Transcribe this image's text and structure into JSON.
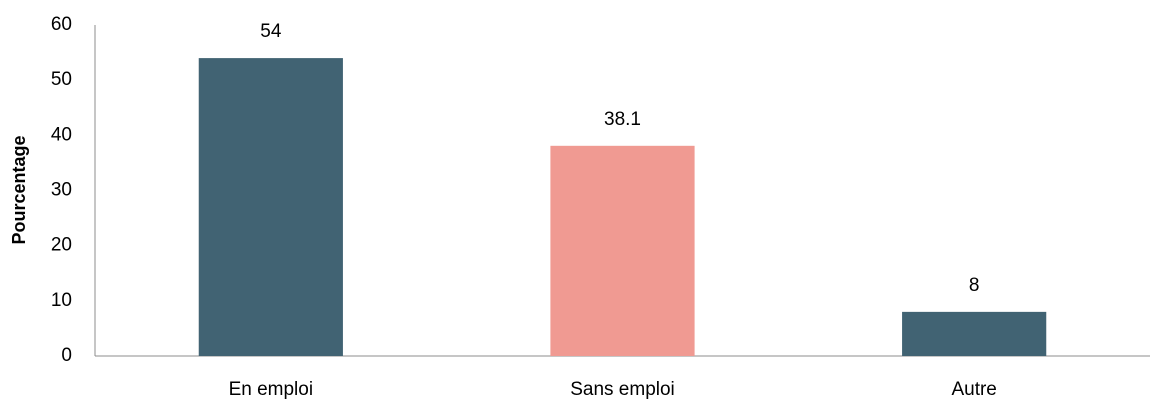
{
  "chart_data": {
    "type": "bar",
    "y_label": "Pourcentage",
    "categories": [
      "En emploi",
      "Sans emploi",
      "Autre"
    ],
    "values": [
      54,
      38.1,
      8
    ],
    "colors": [
      "#416373",
      "#f09a92",
      "#416373"
    ],
    "ylim": [
      0,
      60
    ],
    "yticks": [
      0,
      10,
      20,
      30,
      40,
      50,
      60
    ],
    "grid": false
  }
}
